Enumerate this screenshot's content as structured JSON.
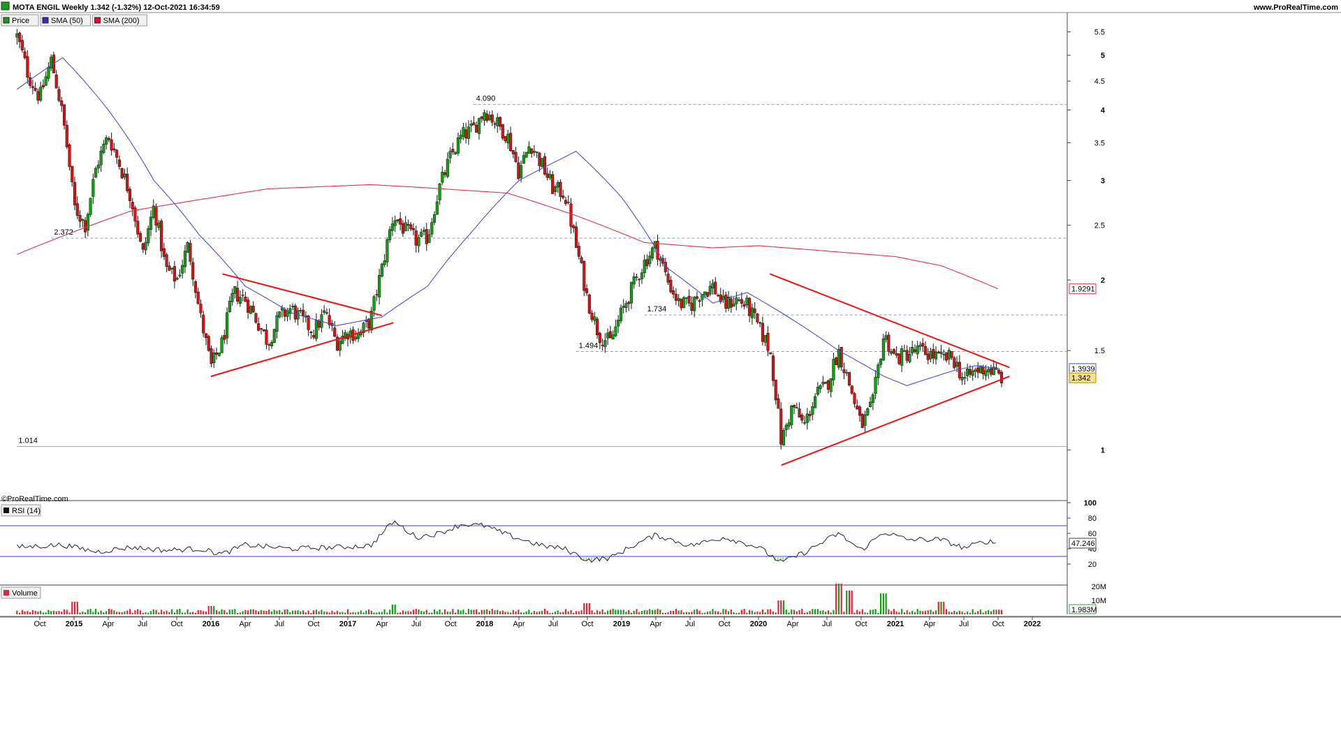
{
  "header": {
    "title": "MOTA ENGIL Weekly 1.342 (-1.32%) 12-Oct-2021 16:34:59",
    "website": "www.ProRealTime.com"
  },
  "legend": [
    {
      "label": "Price",
      "color": "#1a9a1a"
    },
    {
      "label": "SMA (50)",
      "color": "#2b2bd4"
    },
    {
      "label": "SMA (200)",
      "color": "#e3102a"
    }
  ],
  "watermark": "©ProRealTime.com",
  "colors": {
    "up": "#11a011",
    "down": "#dd1111",
    "sma50": "#4b4be0",
    "sma200": "#e0304a",
    "trend": "#ee1111",
    "hline": "#7f9fe0",
    "rsi": "#222222",
    "rsi_band": "#3a3ad8",
    "volume": "#e2263a"
  },
  "chart_data": [
    {
      "type": "candlestick",
      "title": "MOTA ENGIL Weekly 1.342 (-1.32%) 12-Oct-2021 16:34:59",
      "yscale": "log",
      "ylim": [
        0.83,
        5.75
      ],
      "y_ticks": [
        "5.5",
        "5",
        "4.5",
        "4",
        "3.5",
        "3",
        "2.5",
        "2",
        "1.5",
        "1"
      ],
      "x_labels": [
        "Oct",
        "2015",
        "Apr",
        "Jul",
        "Oct",
        "2016",
        "Apr",
        "Jul",
        "Oct",
        "2017",
        "Apr",
        "Jul",
        "Oct",
        "2018",
        "Apr",
        "Jul",
        "Oct",
        "2019",
        "Apr",
        "Jul",
        "Oct",
        "2020",
        "Apr",
        "Jul",
        "Oct",
        "2021",
        "Apr",
        "Jul",
        "Oct",
        "2022"
      ],
      "x_label_dates": [
        "2014-10",
        "2015-01",
        "2015-04",
        "2015-07",
        "2015-10",
        "2016-01",
        "2016-04",
        "2016-07",
        "2016-10",
        "2017-01",
        "2017-04",
        "2017-07",
        "2017-10",
        "2018-01",
        "2018-04",
        "2018-07",
        "2018-10",
        "2019-01",
        "2019-04",
        "2019-07",
        "2019-10",
        "2020-01",
        "2020-04",
        "2020-07",
        "2020-10",
        "2021-01",
        "2021-04",
        "2021-07",
        "2021-10",
        "2022-01"
      ],
      "price_anchors": [
        {
          "date": "2014-08",
          "close": 5.4
        },
        {
          "date": "2014-09",
          "close": 4.6
        },
        {
          "date": "2014-10",
          "close": 4.2
        },
        {
          "date": "2014-11",
          "close": 4.9
        },
        {
          "date": "2014-12",
          "close": 3.9
        },
        {
          "date": "2015-01",
          "close": 2.7
        },
        {
          "date": "2015-02",
          "close": 2.5
        },
        {
          "date": "2015-03",
          "close": 3.2
        },
        {
          "date": "2015-04",
          "close": 3.6
        },
        {
          "date": "2015-05",
          "close": 3.2
        },
        {
          "date": "2015-06",
          "close": 2.8
        },
        {
          "date": "2015-07",
          "close": 2.2
        },
        {
          "date": "2015-08",
          "close": 2.7
        },
        {
          "date": "2015-09",
          "close": 2.1
        },
        {
          "date": "2015-10",
          "close": 2.0
        },
        {
          "date": "2015-11",
          "close": 2.3
        },
        {
          "date": "2015-12",
          "close": 1.75
        },
        {
          "date": "2016-01",
          "close": 1.4
        },
        {
          "date": "2016-02",
          "close": 1.55
        },
        {
          "date": "2016-03",
          "close": 1.9
        },
        {
          "date": "2016-04",
          "close": 1.85
        },
        {
          "date": "2016-05",
          "close": 1.7
        },
        {
          "date": "2016-06",
          "close": 1.55
        },
        {
          "date": "2016-07",
          "close": 1.72
        },
        {
          "date": "2016-08",
          "close": 1.78
        },
        {
          "date": "2016-09",
          "close": 1.7
        },
        {
          "date": "2016-10",
          "close": 1.62
        },
        {
          "date": "2016-11",
          "close": 1.75
        },
        {
          "date": "2016-12",
          "close": 1.55
        },
        {
          "date": "2017-01",
          "close": 1.62
        },
        {
          "date": "2017-02",
          "close": 1.6
        },
        {
          "date": "2017-03",
          "close": 1.7
        },
        {
          "date": "2017-04",
          "close": 2.1
        },
        {
          "date": "2017-05",
          "close": 2.6
        },
        {
          "date": "2017-06",
          "close": 2.45
        },
        {
          "date": "2017-07",
          "close": 2.35
        },
        {
          "date": "2017-08",
          "close": 2.38
        },
        {
          "date": "2017-09",
          "close": 2.9
        },
        {
          "date": "2017-10",
          "close": 3.3
        },
        {
          "date": "2017-11",
          "close": 3.6
        },
        {
          "date": "2017-12",
          "close": 3.7
        },
        {
          "date": "2018-01",
          "close": 4.0
        },
        {
          "date": "2018-02",
          "close": 3.8
        },
        {
          "date": "2018-03",
          "close": 3.6
        },
        {
          "date": "2018-04",
          "close": 3.1
        },
        {
          "date": "2018-05",
          "close": 3.5
        },
        {
          "date": "2018-06",
          "close": 3.2
        },
        {
          "date": "2018-07",
          "close": 2.9
        },
        {
          "date": "2018-08",
          "close": 2.85
        },
        {
          "date": "2018-09",
          "close": 2.3
        },
        {
          "date": "2018-10",
          "close": 1.85
        },
        {
          "date": "2018-11",
          "close": 1.6
        },
        {
          "date": "2018-12",
          "close": 1.55
        },
        {
          "date": "2019-01",
          "close": 1.75
        },
        {
          "date": "2019-02",
          "close": 1.95
        },
        {
          "date": "2019-03",
          "close": 2.15
        },
        {
          "date": "2019-04",
          "close": 2.3
        },
        {
          "date": "2019-05",
          "close": 2.0
        },
        {
          "date": "2019-06",
          "close": 1.82
        },
        {
          "date": "2019-07",
          "close": 1.8
        },
        {
          "date": "2019-08",
          "close": 1.9
        },
        {
          "date": "2019-09",
          "close": 1.95
        },
        {
          "date": "2019-10",
          "close": 1.8
        },
        {
          "date": "2019-11",
          "close": 1.85
        },
        {
          "date": "2019-12",
          "close": 1.8
        },
        {
          "date": "2020-01",
          "close": 1.65
        },
        {
          "date": "2020-02",
          "close": 1.5
        },
        {
          "date": "2020-03",
          "close": 1.03
        },
        {
          "date": "2020-04",
          "close": 1.2
        },
        {
          "date": "2020-05",
          "close": 1.1
        },
        {
          "date": "2020-06",
          "close": 1.25
        },
        {
          "date": "2020-07",
          "close": 1.3
        },
        {
          "date": "2020-08",
          "close": 1.5
        },
        {
          "date": "2020-09",
          "close": 1.3
        },
        {
          "date": "2020-10",
          "close": 1.1
        },
        {
          "date": "2020-11",
          "close": 1.2
        },
        {
          "date": "2020-12",
          "close": 1.6
        },
        {
          "date": "2021-01",
          "close": 1.45
        },
        {
          "date": "2021-02",
          "close": 1.48
        },
        {
          "date": "2021-03",
          "close": 1.5
        },
        {
          "date": "2021-04",
          "close": 1.48
        },
        {
          "date": "2021-05",
          "close": 1.45
        },
        {
          "date": "2021-06",
          "close": 1.46
        },
        {
          "date": "2021-07",
          "close": 1.33
        },
        {
          "date": "2021-08",
          "close": 1.38
        },
        {
          "date": "2021-09",
          "close": 1.4
        },
        {
          "date": "2021-10-12",
          "close": 1.342
        }
      ],
      "sma50_anchors": [
        {
          "date": "2014-08",
          "value": 4.35
        },
        {
          "date": "2014-12",
          "value": 4.95
        },
        {
          "date": "2015-04",
          "value": 4.0
        },
        {
          "date": "2015-08",
          "value": 3.0
        },
        {
          "date": "2015-12",
          "value": 2.4
        },
        {
          "date": "2016-04",
          "value": 1.95
        },
        {
          "date": "2016-08",
          "value": 1.75
        },
        {
          "date": "2016-12",
          "value": 1.66
        },
        {
          "date": "2017-04",
          "value": 1.72
        },
        {
          "date": "2017-08",
          "value": 1.95
        },
        {
          "date": "2017-12",
          "value": 2.45
        },
        {
          "date": "2018-04",
          "value": 3.0
        },
        {
          "date": "2018-08",
          "value": 3.3
        },
        {
          "date": "2018-09",
          "value": 3.38
        },
        {
          "date": "2019-01",
          "value": 2.8
        },
        {
          "date": "2019-05",
          "value": 2.1
        },
        {
          "date": "2019-09",
          "value": 1.82
        },
        {
          "date": "2019-12",
          "value": 1.9
        },
        {
          "date": "2020-04",
          "value": 1.7
        },
        {
          "date": "2020-08",
          "value": 1.5
        },
        {
          "date": "2020-12",
          "value": 1.35
        },
        {
          "date": "2021-02",
          "value": 1.3
        },
        {
          "date": "2021-06",
          "value": 1.38
        },
        {
          "date": "2021-08",
          "value": 1.41
        },
        {
          "date": "2021-10",
          "value": 1.3939
        }
      ],
      "sma200_anchors": [
        {
          "date": "2014-08",
          "value": 2.22
        },
        {
          "date": "2015-06",
          "value": 2.65
        },
        {
          "date": "2016-06",
          "value": 2.9
        },
        {
          "date": "2017-03",
          "value": 2.95
        },
        {
          "date": "2017-07",
          "value": 2.92
        },
        {
          "date": "2018-03",
          "value": 2.85
        },
        {
          "date": "2018-09",
          "value": 2.6
        },
        {
          "date": "2019-03",
          "value": 2.33
        },
        {
          "date": "2019-09",
          "value": 2.28
        },
        {
          "date": "2020-01",
          "value": 2.3
        },
        {
          "date": "2020-07",
          "value": 2.25
        },
        {
          "date": "2021-01",
          "value": 2.2
        },
        {
          "date": "2021-05",
          "value": 2.12
        },
        {
          "date": "2021-10",
          "value": 1.9291
        }
      ],
      "horizontal_levels": [
        {
          "value": 4.09,
          "label": "4.090",
          "style": "dashed",
          "from": "2017-12"
        },
        {
          "value": 2.372,
          "label": "2.372",
          "style": "dashed",
          "from": "2014-11"
        },
        {
          "value": 1.734,
          "label": "1.734",
          "style": "dashed",
          "from": "2019-03"
        },
        {
          "value": 1.494,
          "label": "1.494",
          "style": "dashed",
          "from": "2018-09"
        },
        {
          "value": 1.014,
          "label": "1.014",
          "style": "solid",
          "from": "2014-08"
        }
      ],
      "trendlines": [
        {
          "from": [
            "2016-01",
            1.35
          ],
          "to": [
            "2017-05",
            1.68
          ]
        },
        {
          "from": [
            "2016-02",
            2.05
          ],
          "to": [
            "2017-04",
            1.73
          ]
        },
        {
          "from": [
            "2020-03",
            0.94
          ],
          "to": [
            "2021-11",
            1.35
          ]
        },
        {
          "from": [
            "2020-02",
            2.05
          ],
          "to": [
            "2021-11",
            1.4
          ]
        }
      ],
      "last_values": {
        "price": "1.342",
        "sma50": "1.3939",
        "sma200": "1.9291"
      }
    },
    {
      "type": "line",
      "title": "RSI (14)",
      "ylim": [
        0,
        100
      ],
      "y_ticks": [
        "100",
        "80",
        "60",
        "40",
        "20"
      ],
      "bands": [
        70,
        30
      ],
      "last_value": "47.246",
      "anchors": [
        {
          "date": "2014-08",
          "value": 42
        },
        {
          "date": "2014-12",
          "value": 45
        },
        {
          "date": "2015-03",
          "value": 36
        },
        {
          "date": "2015-06",
          "value": 42
        },
        {
          "date": "2015-09",
          "value": 38
        },
        {
          "date": "2015-12",
          "value": 40
        },
        {
          "date": "2016-02",
          "value": 33
        },
        {
          "date": "2016-04",
          "value": 45
        },
        {
          "date": "2016-08",
          "value": 40
        },
        {
          "date": "2016-12",
          "value": 42
        },
        {
          "date": "2017-03",
          "value": 44
        },
        {
          "date": "2017-05",
          "value": 76
        },
        {
          "date": "2017-07",
          "value": 55
        },
        {
          "date": "2017-09",
          "value": 60
        },
        {
          "date": "2017-11",
          "value": 72
        },
        {
          "date": "2018-01",
          "value": 70
        },
        {
          "date": "2018-03",
          "value": 58
        },
        {
          "date": "2018-06",
          "value": 44
        },
        {
          "date": "2018-08",
          "value": 40
        },
        {
          "date": "2018-10",
          "value": 25
        },
        {
          "date": "2018-12",
          "value": 28
        },
        {
          "date": "2019-02",
          "value": 44
        },
        {
          "date": "2019-04",
          "value": 58
        },
        {
          "date": "2019-07",
          "value": 44
        },
        {
          "date": "2019-10",
          "value": 55
        },
        {
          "date": "2020-01",
          "value": 42
        },
        {
          "date": "2020-03",
          "value": 22
        },
        {
          "date": "2020-05",
          "value": 35
        },
        {
          "date": "2020-08",
          "value": 60
        },
        {
          "date": "2020-10",
          "value": 38
        },
        {
          "date": "2020-12",
          "value": 62
        },
        {
          "date": "2021-02",
          "value": 52
        },
        {
          "date": "2021-05",
          "value": 52
        },
        {
          "date": "2021-07",
          "value": 41
        },
        {
          "date": "2021-09",
          "value": 50
        },
        {
          "date": "2021-10",
          "value": 47.246
        }
      ]
    },
    {
      "type": "bar",
      "title": "Volume",
      "y_ticks": [
        "20M",
        "10M"
      ],
      "last_value": "1.983M",
      "spikes": [
        {
          "date": "2015-01",
          "value": 9
        },
        {
          "date": "2016-01",
          "value": 6
        },
        {
          "date": "2017-05",
          "value": 7
        },
        {
          "date": "2018-10",
          "value": 8
        },
        {
          "date": "2020-03",
          "value": 10
        },
        {
          "date": "2020-08",
          "value": 22
        },
        {
          "date": "2020-09",
          "value": 17
        },
        {
          "date": "2020-12",
          "value": 15
        },
        {
          "date": "2021-05",
          "value": 9
        }
      ]
    }
  ]
}
